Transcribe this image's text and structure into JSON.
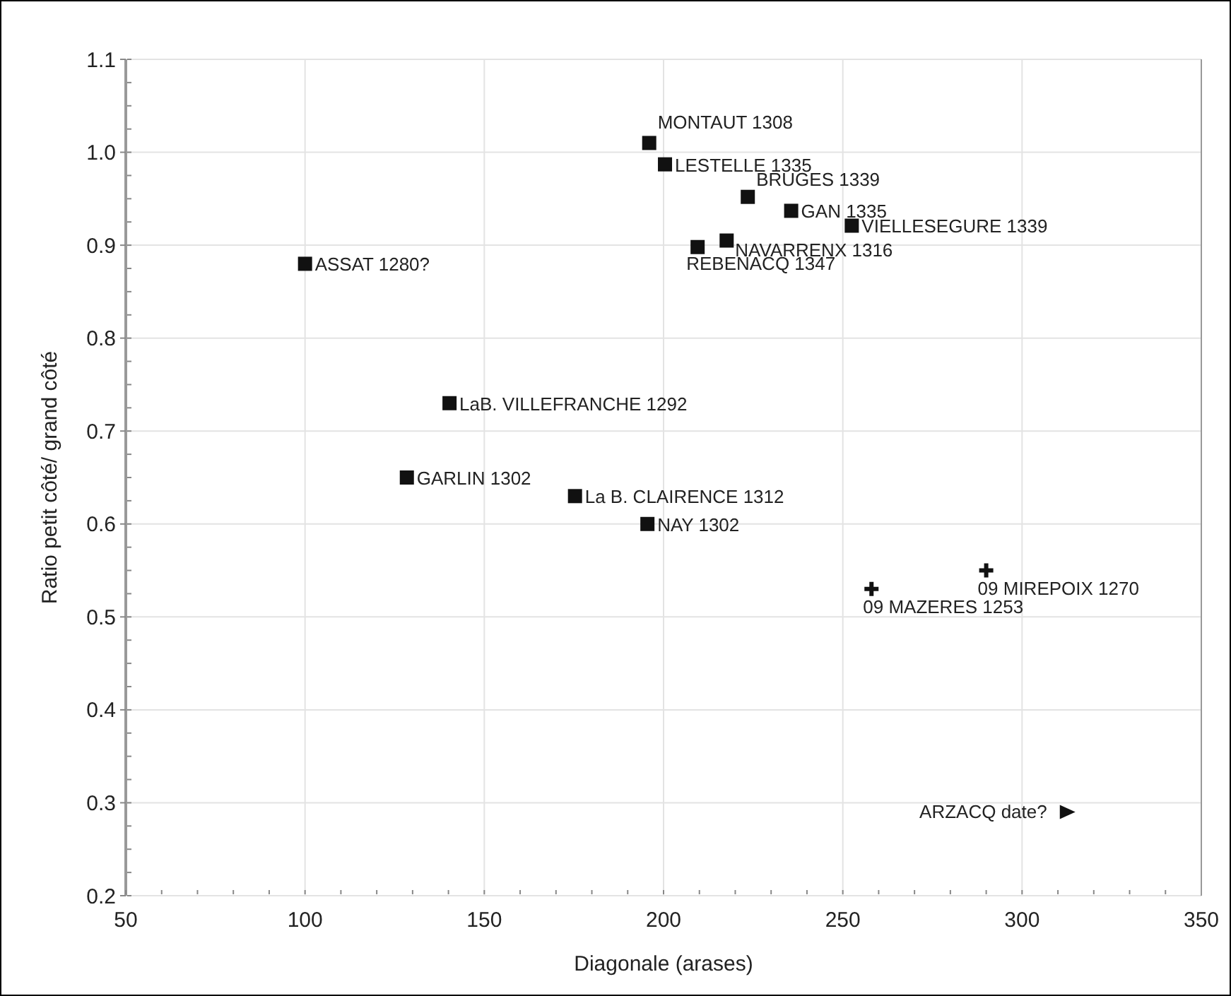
{
  "chart_data": {
    "type": "scatter",
    "xlabel": "Diagonale (arases)",
    "ylabel": "Ratio petit côté/ grand côté",
    "xlim": [
      50,
      350
    ],
    "xticks": [
      50,
      100,
      150,
      200,
      250,
      300,
      350
    ],
    "ylim": [
      0.2,
      1.1
    ],
    "yticks": [
      {
        "value": 0.2,
        "label": "0.2"
      },
      {
        "value": 0.3,
        "label": "0.3"
      },
      {
        "value": 0.4,
        "label": "0.4"
      },
      {
        "value": 0.5,
        "label": "0.5"
      },
      {
        "value": 0.6,
        "label": "0.6"
      },
      {
        "value": 0.7,
        "label": "0.7"
      },
      {
        "value": 0.8,
        "label": "0.8"
      },
      {
        "value": 0.9,
        "label": "0.9"
      },
      {
        "value": 1.0,
        "label": "1.0"
      },
      {
        "value": 1.1,
        "label": "1.1"
      }
    ],
    "grid": true,
    "series": [
      {
        "color": "#111111",
        "marker": "square",
        "x": [
          196,
          200.4,
          223.5,
          235.6,
          252.5,
          217.6,
          209.5,
          100,
          140.3,
          128.4,
          175.3,
          195.5
        ],
        "values": [
          1.01,
          0.987,
          0.952,
          0.937,
          0.921,
          0.905,
          0.898,
          0.88,
          0.73,
          0.65,
          0.63,
          0.6
        ]
      },
      {
        "color": "#111111",
        "marker": "cross",
        "x": [
          258,
          290
        ],
        "values": [
          0.53,
          0.55
        ]
      },
      {
        "color": "#111111",
        "marker": "triangle",
        "x": [
          312.5
        ],
        "values": [
          0.29
        ]
      }
    ],
    "annotations": [
      {
        "text": "MONTAUT 1308",
        "x": 196,
        "y": 1.01
      },
      {
        "text": "LESTELLE 1335",
        "x": 200.4,
        "y": 0.987
      },
      {
        "text": "BRUGES 1339",
        "x": 223.5,
        "y": 0.952
      },
      {
        "text": "GAN 1335",
        "x": 235.6,
        "y": 0.937
      },
      {
        "text": "VIELLESEGURE 1339",
        "x": 252.5,
        "y": 0.921
      },
      {
        "text": "NAVARRENX 1316",
        "x": 217.6,
        "y": 0.905
      },
      {
        "text": "REBENACQ 1347",
        "x": 209.5,
        "y": 0.898
      },
      {
        "text": "ASSAT 1280?",
        "x": 100,
        "y": 0.88
      },
      {
        "text": "LaB. VILLEFRANCHE 1292",
        "x": 140.3,
        "y": 0.73
      },
      {
        "text": "GARLIN 1302",
        "x": 128.4,
        "y": 0.65
      },
      {
        "text": "La B. CLAIRENCE 1312",
        "x": 175.3,
        "y": 0.63
      },
      {
        "text": "NAY 1302",
        "x": 195.5,
        "y": 0.6
      },
      {
        "text": "09 MAZERES 1253",
        "x": 258,
        "y": 0.53
      },
      {
        "text": "09 MIREPOIX 1270",
        "x": 290,
        "y": 0.55
      },
      {
        "text": "ARZACQ date?",
        "x": 312.5,
        "y": 0.29
      }
    ]
  }
}
